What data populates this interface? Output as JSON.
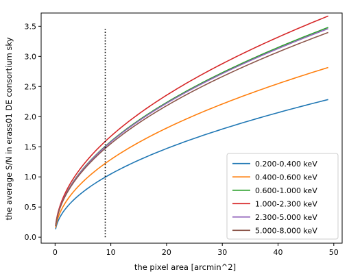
{
  "chart_data": {
    "type": "line",
    "xlabel": "the pixel area [arcmin^2]",
    "ylabel": "the average S/N in erass01 DE consortium sky",
    "xlim": [
      -2.5,
      51.5
    ],
    "ylim": [
      -0.1,
      3.72
    ],
    "x_ticks": [
      0,
      10,
      20,
      30,
      40,
      50
    ],
    "y_ticks": [
      0.0,
      0.5,
      1.0,
      1.5,
      2.0,
      2.5,
      3.0,
      3.5
    ],
    "x_tick_labels": [
      "0",
      "10",
      "20",
      "30",
      "40",
      "50"
    ],
    "y_tick_labels": [
      "0.0",
      "0.5",
      "1.0",
      "1.5",
      "2.0",
      "2.5",
      "3.0",
      "3.5"
    ],
    "grid": false,
    "legend_position": "lower right",
    "x_range_of_curves": [
      0.1,
      49
    ],
    "series": [
      {
        "name": "0.200-0.400 keV",
        "color": "#1f77b4",
        "coef": 0.322
      },
      {
        "name": "0.400-0.600 keV",
        "color": "#ff7f0e",
        "coef": 0.398
      },
      {
        "name": "0.600-1.000 keV",
        "color": "#2ca02c",
        "coef": 0.493
      },
      {
        "name": "1.000-2.300 keV",
        "color": "#d62728",
        "coef": 0.52
      },
      {
        "name": "2.300-5.000 keV",
        "color": "#9467bd",
        "coef": 0.49
      },
      {
        "name": "5.000-8.000 keV",
        "color": "#8c564b",
        "coef": 0.481
      }
    ],
    "sample_points": {
      "x": [
        0.1,
        1,
        2,
        5,
        9,
        15,
        20,
        30,
        40,
        49
      ],
      "note_values_are_coef_times_sqrt_x": true
    },
    "vline": {
      "x": 9,
      "y_from": 0.0,
      "y_to": 3.48,
      "style": "dotted",
      "color": "#000000"
    }
  }
}
